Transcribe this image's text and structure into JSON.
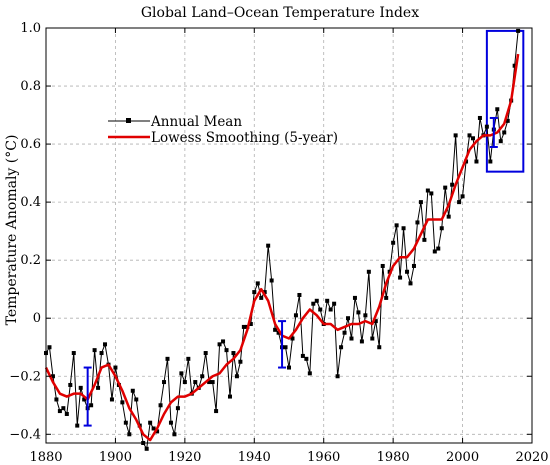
{
  "chart_data": {
    "type": "line",
    "title": "Global Land–Ocean Temperature Index",
    "xlabel": "",
    "ylabel": "Temperature Anomaly (°C)",
    "xlim": [
      1880,
      2020
    ],
    "ylim": [
      -0.43,
      1.0
    ],
    "x_ticks": [
      1880,
      1900,
      1920,
      1940,
      1960,
      1980,
      2000,
      2020
    ],
    "y_ticks": [
      -0.4,
      -0.2,
      0,
      0.2,
      0.4,
      0.6,
      0.8,
      1.0
    ],
    "y_tick_labels": [
      "−0.4",
      "−0.2",
      "0",
      "0.2",
      "0.4",
      "0.6",
      "0.8",
      "1.0"
    ],
    "grid": true,
    "legend_placement": "upper-left",
    "series": [
      {
        "name": "Annual Mean",
        "color": "#000000",
        "marker": "square",
        "x": [
          1880,
          1881,
          1882,
          1883,
          1884,
          1885,
          1886,
          1887,
          1888,
          1889,
          1890,
          1891,
          1892,
          1893,
          1894,
          1895,
          1896,
          1897,
          1898,
          1899,
          1900,
          1901,
          1902,
          1903,
          1904,
          1905,
          1906,
          1907,
          1908,
          1909,
          1910,
          1911,
          1912,
          1913,
          1914,
          1915,
          1916,
          1917,
          1918,
          1919,
          1920,
          1921,
          1922,
          1923,
          1924,
          1925,
          1926,
          1927,
          1928,
          1929,
          1930,
          1931,
          1932,
          1933,
          1934,
          1935,
          1936,
          1937,
          1938,
          1939,
          1940,
          1941,
          1942,
          1943,
          1944,
          1945,
          1946,
          1947,
          1948,
          1949,
          1950,
          1951,
          1952,
          1953,
          1954,
          1955,
          1956,
          1957,
          1958,
          1959,
          1960,
          1961,
          1962,
          1963,
          1964,
          1965,
          1966,
          1967,
          1968,
          1969,
          1970,
          1971,
          1972,
          1973,
          1974,
          1975,
          1976,
          1977,
          1978,
          1979,
          1980,
          1981,
          1982,
          1983,
          1984,
          1985,
          1986,
          1987,
          1988,
          1989,
          1990,
          1991,
          1992,
          1993,
          1994,
          1995,
          1996,
          1997,
          1998,
          1999,
          2000,
          2001,
          2002,
          2003,
          2004,
          2005,
          2006,
          2007,
          2008,
          2009,
          2010,
          2011,
          2012,
          2013,
          2014,
          2015,
          2016
        ],
        "values": [
          -0.12,
          -0.1,
          -0.2,
          -0.28,
          -0.32,
          -0.31,
          -0.33,
          -0.23,
          -0.12,
          -0.37,
          -0.24,
          -0.28,
          -0.31,
          -0.3,
          -0.11,
          -0.24,
          -0.12,
          -0.09,
          -0.16,
          -0.28,
          -0.17,
          -0.23,
          -0.29,
          -0.36,
          -0.4,
          -0.25,
          -0.28,
          -0.37,
          -0.43,
          -0.45,
          -0.36,
          -0.38,
          -0.39,
          -0.3,
          -0.22,
          -0.14,
          -0.36,
          -0.4,
          -0.31,
          -0.19,
          -0.22,
          -0.14,
          -0.26,
          -0.22,
          -0.24,
          -0.2,
          -0.12,
          -0.22,
          -0.22,
          -0.32,
          -0.09,
          -0.08,
          -0.11,
          -0.27,
          -0.12,
          -0.2,
          -0.15,
          -0.03,
          -0.03,
          -0.02,
          0.09,
          0.12,
          0.07,
          0.09,
          0.25,
          0.13,
          -0.04,
          -0.05,
          -0.1,
          -0.1,
          -0.17,
          -0.07,
          0.01,
          0.08,
          -0.13,
          -0.14,
          -0.19,
          0.05,
          0.06,
          0.03,
          -0.02,
          0.06,
          0.03,
          0.05,
          -0.2,
          -0.1,
          -0.05,
          0.0,
          -0.07,
          0.07,
          0.02,
          -0.08,
          0.01,
          0.16,
          -0.07,
          -0.01,
          -0.1,
          0.18,
          0.07,
          0.16,
          0.26,
          0.32,
          0.14,
          0.31,
          0.16,
          0.12,
          0.18,
          0.33,
          0.4,
          0.27,
          0.44,
          0.43,
          0.23,
          0.24,
          0.31,
          0.45,
          0.35,
          0.46,
          0.63,
          0.4,
          0.42,
          0.54,
          0.63,
          0.62,
          0.54,
          0.69,
          0.63,
          0.66,
          0.54,
          0.65,
          0.72,
          0.61,
          0.64,
          0.68,
          0.75,
          0.87,
          0.99
        ]
      },
      {
        "name": "Lowess Smoothing (5-year)",
        "color": "#e00000",
        "x": [
          1880,
          1882,
          1884,
          1886,
          1888,
          1890,
          1892,
          1894,
          1896,
          1898,
          1900,
          1902,
          1904,
          1906,
          1908,
          1910,
          1912,
          1914,
          1916,
          1918,
          1920,
          1922,
          1924,
          1926,
          1928,
          1930,
          1932,
          1934,
          1936,
          1938,
          1940,
          1942,
          1944,
          1946,
          1948,
          1950,
          1952,
          1954,
          1956,
          1958,
          1960,
          1962,
          1964,
          1966,
          1968,
          1970,
          1972,
          1974,
          1976,
          1978,
          1980,
          1982,
          1984,
          1986,
          1988,
          1990,
          1992,
          1994,
          1996,
          1998,
          2000,
          2002,
          2004,
          2006,
          2008,
          2010,
          2012,
          2014,
          2016
        ],
        "values": [
          -0.17,
          -0.22,
          -0.26,
          -0.27,
          -0.26,
          -0.26,
          -0.28,
          -0.23,
          -0.17,
          -0.16,
          -0.2,
          -0.25,
          -0.31,
          -0.35,
          -0.4,
          -0.42,
          -0.38,
          -0.33,
          -0.29,
          -0.27,
          -0.27,
          -0.26,
          -0.24,
          -0.22,
          -0.2,
          -0.19,
          -0.16,
          -0.14,
          -0.11,
          -0.04,
          0.06,
          0.1,
          0.06,
          -0.02,
          -0.06,
          -0.07,
          -0.04,
          0.0,
          0.03,
          0.01,
          -0.02,
          -0.02,
          -0.04,
          -0.03,
          -0.02,
          -0.02,
          -0.01,
          -0.02,
          0.04,
          0.12,
          0.18,
          0.21,
          0.21,
          0.24,
          0.29,
          0.34,
          0.34,
          0.34,
          0.39,
          0.46,
          0.52,
          0.58,
          0.61,
          0.63,
          0.63,
          0.64,
          0.67,
          0.75,
          0.91
        ]
      }
    ],
    "error_bars": [
      {
        "x": 1892,
        "low": -0.37,
        "high": -0.17,
        "color": "#0000dd"
      },
      {
        "x": 1948,
        "low": -0.17,
        "high": -0.01,
        "color": "#0000dd"
      },
      {
        "x": 2009,
        "low": 0.59,
        "high": 0.69,
        "color": "#0000dd"
      }
    ],
    "highlight_box": {
      "x_range": [
        2007,
        2017.5
      ],
      "y_range": [
        0.505,
        0.99
      ],
      "color": "#0000dd"
    }
  }
}
